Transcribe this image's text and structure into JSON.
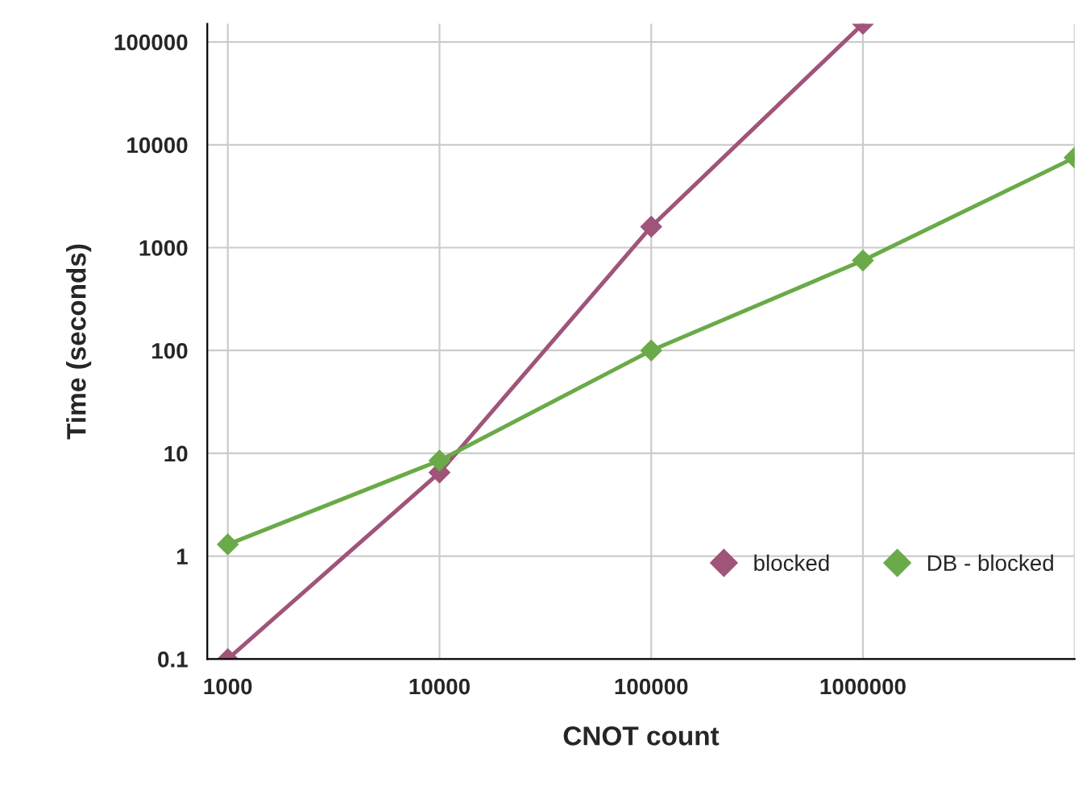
{
  "chart_data": {
    "type": "line",
    "xlabel": "CNOT count",
    "ylabel": "Time (seconds)",
    "log": "xy",
    "xlim": [
      800,
      10000000
    ],
    "xticks": [
      1000,
      10000,
      100000,
      1000000,
      {
        "value": 10000000,
        "label": null
      }
    ],
    "ylim": [
      0.1,
      150000
    ],
    "yticks": [
      0.1,
      1,
      10,
      100,
      1000,
      10000,
      100000
    ],
    "grid": true,
    "legend": "bottom right",
    "marker": "diamond",
    "line_style": "solid",
    "series": [
      {
        "name": "blocked",
        "color": "#a0547a",
        "x": [
          1000,
          10000,
          100000,
          1000000
        ],
        "values": [
          0.1,
          6.5,
          1600,
          150000
        ]
      },
      {
        "name": "DB - blocked",
        "color": "#6aaa48",
        "x": [
          1000,
          10000,
          100000,
          1000000,
          10000000
        ],
        "values": [
          1.3,
          8.5,
          100,
          750,
          7500
        ]
      }
    ]
  }
}
